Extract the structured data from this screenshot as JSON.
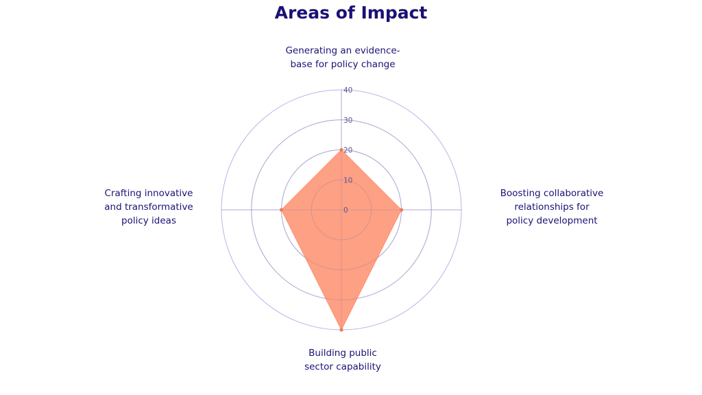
{
  "chart_data": {
    "type": "radar",
    "title": "Areas of Impact",
    "axes": [
      "Generating an evidence-\nbase for policy change",
      "Boosting collaborative\nrelationships for\npolicy development",
      "Building public\nsector capability",
      "Crafting innovative\nand transformative\npolicy ideas"
    ],
    "values": [
      20,
      20,
      40,
      20
    ],
    "ticks": [
      "0",
      "10",
      "20",
      "30",
      "40"
    ],
    "rmax": 40,
    "colors": {
      "fill": "#fe8f6e",
      "point": "#f07a5a",
      "grid": "#b9b4e6",
      "text": "#1a1175"
    }
  }
}
